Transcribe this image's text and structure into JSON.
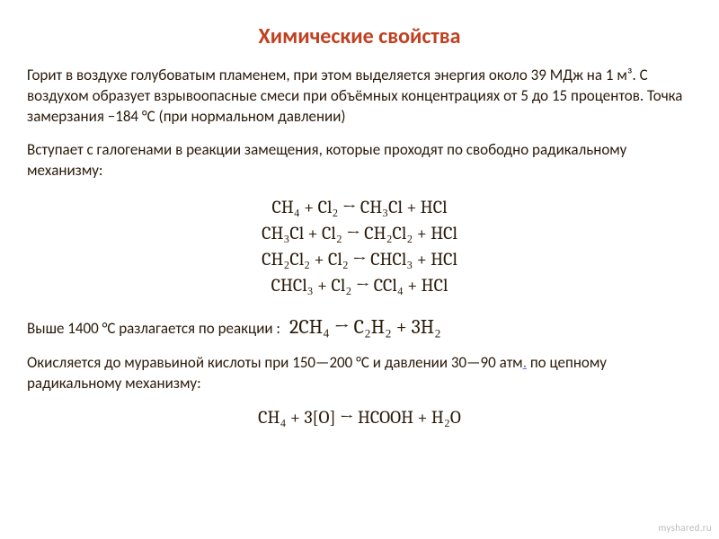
{
  "title": {
    "text": "Химические свойства",
    "color": "#c04020",
    "fontsize": 24
  },
  "body_color": "#2a1a0a",
  "para1": "Горит в воздухе голубоватым пламенем, при этом выделяется энергия около 39 МДж на 1 м³. С воздухом образует взрывоопасные смеси при объёмных концентрациях от 5 до 15 процентов. Точка замерзания −184 °С (при нормальном давлении)",
  "para2": "Вступает с галогенами в реакции замещения, которые проходят по свободно радикальному механизму:",
  "equations_block1": [
    "CH₄ + Cl₂ → CH₃Cl + HCl",
    "CH₃Cl + Cl₂ → CH₂Cl₂ + HCl",
    "CH₂Cl₂ + Cl₂ → CHCl₃ + HCl",
    "CHCl₃ + Cl₂ → CCl₄ + HCl"
  ],
  "para3_prefix": "Выше 1400 °С разлагается по реакции :",
  "equation_inline": "2CH₄ → C₂H₂ + 3H₂",
  "para4_before_link": "Окисляется до муравьиной кислоты при 150—200 °С и давлении 30—90 атм",
  "para4_link": ".",
  "para4_after_link": " по цепному радикальному механизму:",
  "equation_bottom": "CH₄ + 3[O] → HCOOH + H₂O",
  "link_color": "#6666dd",
  "watermark": "myshared.ru",
  "watermark_color": "#bbbbbb"
}
